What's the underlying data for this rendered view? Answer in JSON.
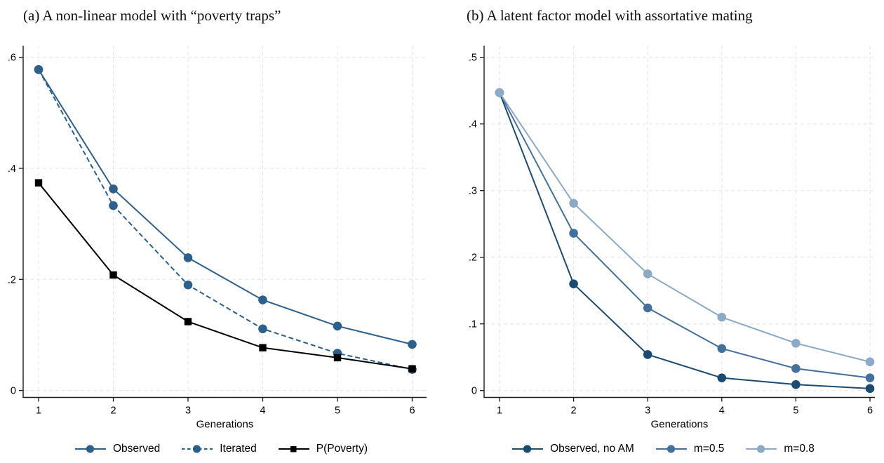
{
  "figure": {
    "description": "Two-panel line figure comparing intergenerational mobility models across generations"
  },
  "chart_data": [
    {
      "type": "line",
      "title": "(a) A non-linear model with “poverty traps”",
      "xlabel": "Generations",
      "x": [
        1,
        2,
        3,
        4,
        5,
        6
      ],
      "ylim": [
        0,
        0.6
      ],
      "yticks": [
        0,
        0.2,
        0.4,
        0.6
      ],
      "ytick_labels": [
        "0",
        ".2",
        ".4",
        ".6"
      ],
      "grid": true,
      "legend_position": "bottom",
      "series": [
        {
          "name": "Observed",
          "values": [
            0.578,
            0.363,
            0.239,
            0.163,
            0.116,
            0.083
          ],
          "color": "#2b5f8c",
          "marker": "circle",
          "line_style": "solid"
        },
        {
          "name": "Iterated",
          "values": [
            0.578,
            0.333,
            0.19,
            0.111,
            0.067,
            0.038
          ],
          "color": "#2b5f8c",
          "marker": "circle",
          "line_style": "dashed"
        },
        {
          "name": "P(Poverty)",
          "values": [
            0.374,
            0.208,
            0.124,
            0.077,
            0.059,
            0.039
          ],
          "color": "#000000",
          "marker": "square",
          "line_style": "solid"
        }
      ]
    },
    {
      "type": "line",
      "title": "(b) A latent factor model with assortative mating",
      "xlabel": "Generations",
      "x": [
        1,
        2,
        3,
        4,
        5,
        6
      ],
      "ylim": [
        0,
        0.5
      ],
      "yticks": [
        0,
        0.1,
        0.2,
        0.3,
        0.4,
        0.5
      ],
      "ytick_labels": [
        "0",
        ".1",
        ".2",
        ".3",
        ".4",
        ".5"
      ],
      "grid": true,
      "legend_position": "bottom",
      "series": [
        {
          "name": "Observed, no AM",
          "values": [
            0.447,
            0.16,
            0.054,
            0.019,
            0.009,
            0.003
          ],
          "color": "#1b4a73",
          "marker": "circle",
          "line_style": "solid"
        },
        {
          "name": "m=0.5",
          "values": [
            0.447,
            0.236,
            0.124,
            0.063,
            0.033,
            0.019
          ],
          "color": "#44709e",
          "marker": "circle",
          "line_style": "solid"
        },
        {
          "name": "m=0.8",
          "values": [
            0.447,
            0.281,
            0.175,
            0.11,
            0.071,
            0.043
          ],
          "color": "#8ca9c6",
          "marker": "circle",
          "line_style": "solid"
        }
      ]
    }
  ]
}
